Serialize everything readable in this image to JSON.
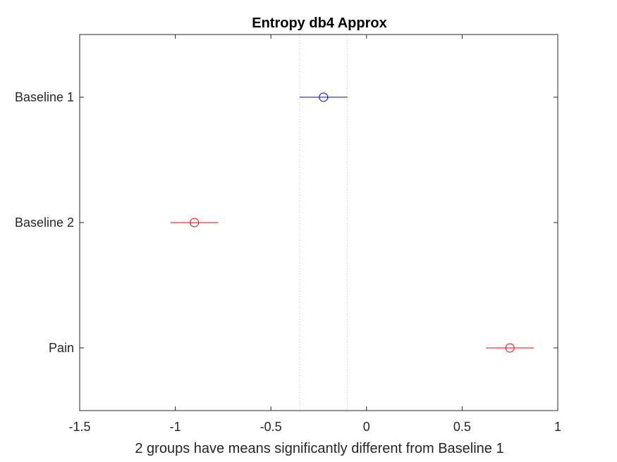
{
  "chart_data": {
    "type": "scatter",
    "title": "Entropy db4 Approx",
    "xlabel": "2 groups have means significantly different from Baseline 1",
    "ylabel": "",
    "xlim": [
      -1.5,
      1
    ],
    "xticks": [
      -1.5,
      -1,
      -0.5,
      0,
      0.5,
      1
    ],
    "xtick_labels": [
      "-1.5",
      "-1",
      "-0.5",
      "0",
      "0.5",
      "1"
    ],
    "categories": [
      "Baseline 1",
      "Baseline 2",
      "Pain"
    ],
    "reference_interval": [
      -0.35,
      -0.1
    ],
    "groups": [
      {
        "label": "Baseline 1",
        "mean": -0.225,
        "lower": -0.35,
        "upper": -0.1,
        "color": "#0000ff",
        "selected": true
      },
      {
        "label": "Baseline 2",
        "mean": -0.9,
        "lower": -1.025,
        "upper": -0.775,
        "color": "#ff0000",
        "selected": false
      },
      {
        "label": "Pain",
        "mean": 0.75,
        "lower": 0.625,
        "upper": 0.875,
        "color": "#ff0000",
        "selected": false
      }
    ],
    "grid": false
  }
}
